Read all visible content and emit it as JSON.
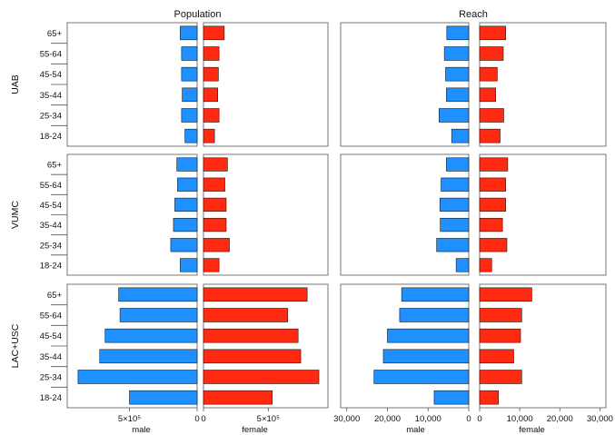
{
  "chart_data": {
    "type": "bar",
    "column_titles": [
      "Population",
      "Reach"
    ],
    "row_titles": [
      "UAB",
      "VUMC",
      "LAC+USC"
    ],
    "categories": [
      "65+",
      "55-64",
      "45-54",
      "35-44",
      "25-34",
      "18-24"
    ],
    "side_labels": {
      "male": "male",
      "female": "female"
    },
    "colors": {
      "male": "#1e90ff",
      "female": "#ff2a10"
    },
    "panels": [
      {
        "row": "UAB",
        "column": "Population",
        "series": [
          {
            "name": "male",
            "values": [
              125000,
              115000,
              115000,
              110000,
              115000,
              90000
            ]
          },
          {
            "name": "female",
            "values": [
              160000,
              120000,
              115000,
              110000,
              120000,
              85000
            ]
          }
        ]
      },
      {
        "row": "UAB",
        "column": "Reach",
        "series": [
          {
            "name": "male",
            "values": [
              5400,
              6000,
              5700,
              5500,
              7300,
              4200
            ]
          },
          {
            "name": "female",
            "values": [
              6500,
              5900,
              4400,
              4000,
              6000,
              5100
            ]
          }
        ]
      },
      {
        "row": "VUMC",
        "column": "Population",
        "series": [
          {
            "name": "male",
            "values": [
              150000,
              145000,
              165000,
              175000,
              195000,
              125000
            ]
          },
          {
            "name": "female",
            "values": [
              185000,
              165000,
              175000,
              175000,
              200000,
              120000
            ]
          }
        ]
      },
      {
        "row": "VUMC",
        "column": "Reach",
        "series": [
          {
            "name": "male",
            "values": [
              5500,
              6800,
              7100,
              7000,
              7900,
              3100
            ]
          },
          {
            "name": "female",
            "values": [
              7000,
              6500,
              6500,
              5700,
              6800,
              3000
            ]
          }
        ]
      },
      {
        "row": "LAC+USC",
        "column": "Population",
        "series": [
          {
            "name": "male",
            "values": [
              580000,
              570000,
              680000,
              720000,
              880000,
              500000
            ]
          },
          {
            "name": "female",
            "values": [
              800000,
              650000,
              730000,
              750000,
              890000,
              530000
            ]
          }
        ]
      },
      {
        "row": "LAC+USC",
        "column": "Reach",
        "series": [
          {
            "name": "male",
            "values": [
              16500,
              17000,
              20000,
              21000,
              23300,
              8500
            ]
          },
          {
            "name": "female",
            "values": [
              13000,
              10500,
              10200,
              8500,
              10500,
              4700
            ]
          }
        ]
      }
    ],
    "axes": {
      "Population": {
        "male_lim": [
          0,
          960000
        ],
        "female_lim": [
          0,
          960000
        ],
        "male_ticks": [
          {
            "value": 500000,
            "label": "5×10⁵"
          },
          {
            "value": 0,
            "label": "0"
          }
        ],
        "female_ticks": [
          {
            "value": 0,
            "label": "0"
          },
          {
            "value": 500000,
            "label": "5×10⁵"
          }
        ]
      },
      "Reach": {
        "male_lim": [
          0,
          31500
        ],
        "female_lim": [
          0,
          31500
        ],
        "male_ticks": [
          {
            "value": 30000,
            "label": "30,000"
          },
          {
            "value": 20000,
            "label": "20,000"
          },
          {
            "value": 10000,
            "label": "10,000"
          },
          {
            "value": 0,
            "label": "0"
          }
        ],
        "female_ticks": [
          {
            "value": 0,
            "label": "0"
          },
          {
            "value": 10000,
            "label": "10,000"
          },
          {
            "value": 20000,
            "label": "20,000"
          },
          {
            "value": 30000,
            "label": "30,000"
          }
        ]
      }
    },
    "grid": false,
    "legend": "none"
  }
}
